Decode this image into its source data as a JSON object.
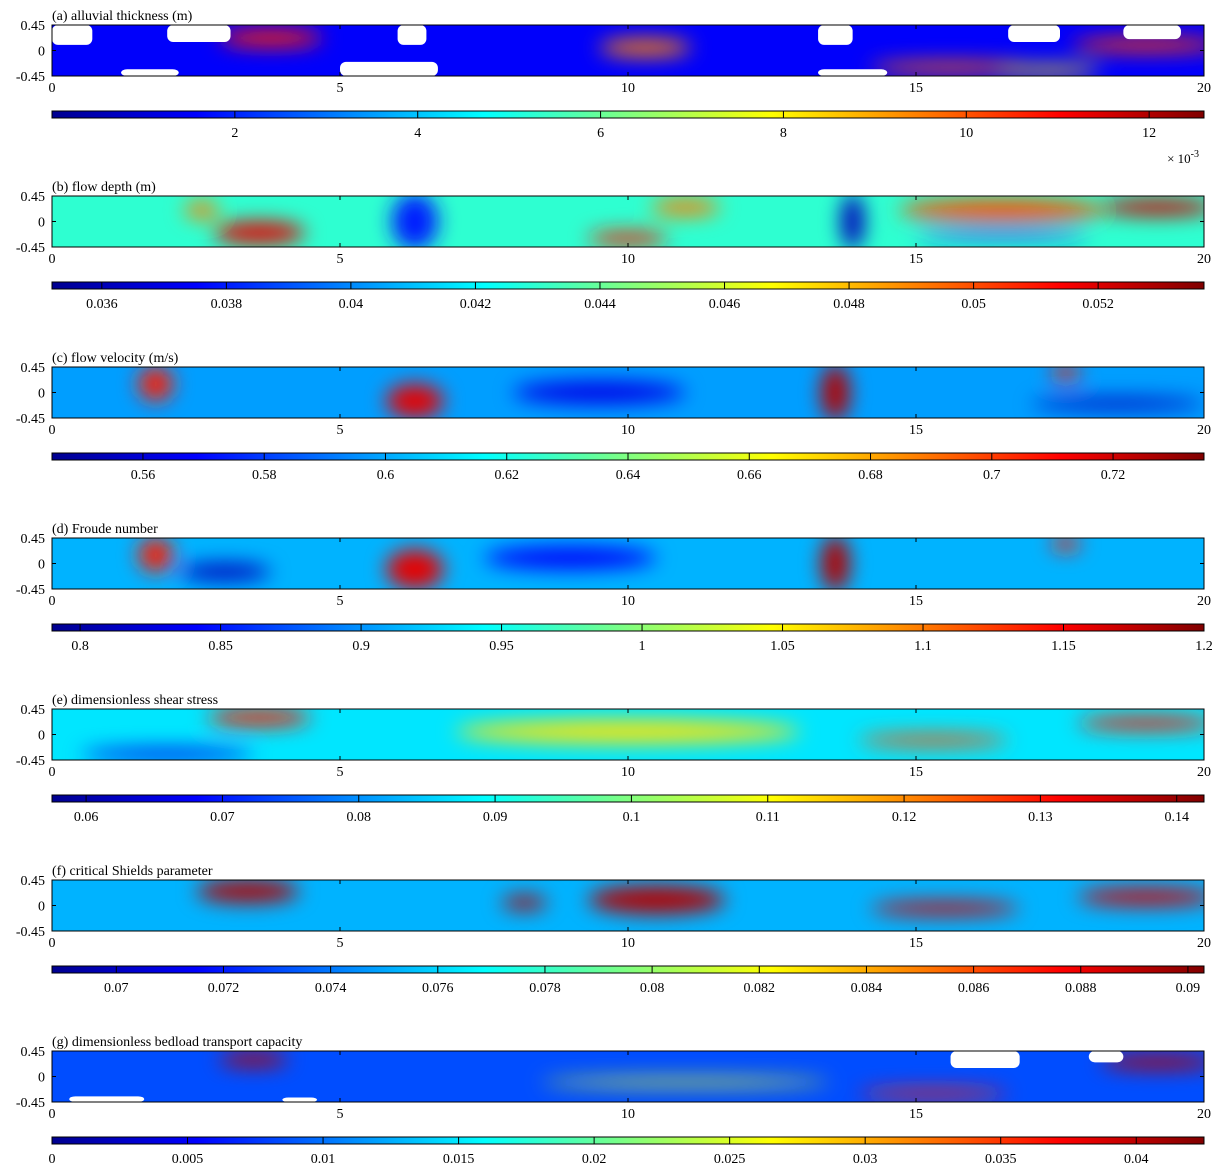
{
  "figure": {
    "axis": {
      "x_ticks": [
        0,
        5,
        10,
        15,
        20
      ],
      "x_tick_labels": [
        "0",
        "5",
        "10",
        "15",
        "20"
      ],
      "y_ticks": [
        0.45,
        0,
        -0.45
      ],
      "y_tick_labels": [
        "0.45",
        "0",
        "-0.45"
      ],
      "xlim": [
        0,
        20
      ],
      "ylim": [
        -0.45,
        0.45
      ]
    },
    "colormap": "jet",
    "colormap_stops": [
      "#00008f",
      "#0000ff",
      "#0080ff",
      "#00ffff",
      "#80ff80",
      "#ffff00",
      "#ff8000",
      "#ff0000",
      "#800000"
    ],
    "nodata_color": "#ffffff"
  },
  "chart_data": [
    {
      "type": "heatmap",
      "title": "(a) alluvial thickness (m)",
      "colorbar": {
        "range": [
          0,
          0.0126
        ],
        "ticks": [
          0.002,
          0.004,
          0.006,
          0.008,
          0.01,
          0.012
        ],
        "tick_labels": [
          "2",
          "4",
          "6",
          "8",
          "10",
          "12"
        ],
        "multiplier": "× 10",
        "exponent": "-3"
      },
      "background_level": 0.12,
      "features": [
        {
          "x": 3.8,
          "y": 0.22,
          "sx": 0.9,
          "sy": 0.15,
          "v": 0.85
        },
        {
          "x": 10.3,
          "y": 0.05,
          "sx": 0.8,
          "sy": 0.15,
          "v": 0.75
        },
        {
          "x": 15.6,
          "y": -0.3,
          "sx": 1.4,
          "sy": 0.1,
          "v": 0.78
        },
        {
          "x": 17.3,
          "y": -0.35,
          "sx": 0.9,
          "sy": 0.08,
          "v": 0.65
        },
        {
          "x": 19.0,
          "y": 0.1,
          "sx": 1.3,
          "sy": 0.12,
          "v": 0.82
        }
      ],
      "nodata": [
        {
          "x": 0,
          "y": 0.1,
          "w": 0.7,
          "h": 0.35
        },
        {
          "x": 2.0,
          "y": 0.15,
          "w": 1.1,
          "h": 0.3
        },
        {
          "x": 1.2,
          "y": -0.45,
          "w": 1.0,
          "h": 0.12
        },
        {
          "x": 5.0,
          "y": -0.45,
          "w": 1.7,
          "h": 0.25
        },
        {
          "x": 6.0,
          "y": 0.1,
          "w": 0.5,
          "h": 0.35
        },
        {
          "x": 13.3,
          "y": -0.45,
          "w": 1.2,
          "h": 0.12
        },
        {
          "x": 13.3,
          "y": 0.1,
          "w": 0.6,
          "h": 0.35
        },
        {
          "x": 16.6,
          "y": 0.15,
          "w": 0.9,
          "h": 0.3
        },
        {
          "x": 18.6,
          "y": 0.2,
          "w": 1.0,
          "h": 0.25
        }
      ]
    },
    {
      "type": "heatmap",
      "title": "(b) flow depth (m)",
      "colorbar": {
        "range": [
          0.0352,
          0.0537
        ],
        "ticks": [
          0.036,
          0.038,
          0.04,
          0.042,
          0.044,
          0.046,
          0.048,
          0.05,
          0.052
        ],
        "tick_labels": [
          "0.036",
          "0.038",
          "0.04",
          "0.042",
          "0.044",
          "0.046",
          "0.048",
          "0.05",
          "0.052"
        ]
      },
      "background_level": 0.42,
      "features": [
        {
          "x": 3.6,
          "y": -0.2,
          "sx": 0.8,
          "sy": 0.2,
          "v": 0.9
        },
        {
          "x": 2.6,
          "y": 0.2,
          "sx": 0.3,
          "sy": 0.15,
          "v": 0.75
        },
        {
          "x": 10.0,
          "y": -0.3,
          "sx": 0.7,
          "sy": 0.12,
          "v": 0.85
        },
        {
          "x": 11.0,
          "y": 0.25,
          "sx": 0.6,
          "sy": 0.15,
          "v": 0.75
        },
        {
          "x": 16.5,
          "y": 0.2,
          "sx": 1.8,
          "sy": 0.2,
          "v": 0.8
        },
        {
          "x": 19.2,
          "y": 0.25,
          "sx": 1.0,
          "sy": 0.15,
          "v": 0.92
        },
        {
          "x": 6.3,
          "y": 0.0,
          "sx": 0.4,
          "sy": 0.5,
          "v": 0.15
        },
        {
          "x": 13.9,
          "y": 0.0,
          "sx": 0.2,
          "sy": 0.5,
          "v": 0.05
        },
        {
          "x": 16.5,
          "y": -0.25,
          "sx": 1.5,
          "sy": 0.07,
          "v": 0.15
        }
      ],
      "nodata": []
    },
    {
      "type": "heatmap",
      "title": "(c) flow velocity (m/s)",
      "colorbar": {
        "range": [
          0.545,
          0.735
        ],
        "ticks": [
          0.56,
          0.58,
          0.6,
          0.62,
          0.64,
          0.66,
          0.68,
          0.7,
          0.72
        ],
        "tick_labels": [
          "0.56",
          "0.58",
          "0.6",
          "0.62",
          "0.64",
          "0.66",
          "0.68",
          "0.7",
          "0.72"
        ]
      },
      "background_level": 0.28,
      "features": [
        {
          "x": 1.8,
          "y": 0.15,
          "sx": 0.3,
          "sy": 0.3,
          "v": 0.85
        },
        {
          "x": 6.3,
          "y": -0.15,
          "sx": 0.5,
          "sy": 0.3,
          "v": 0.9
        },
        {
          "x": 13.6,
          "y": 0.0,
          "sx": 0.25,
          "sy": 0.5,
          "v": 0.95
        },
        {
          "x": 17.6,
          "y": 0.35,
          "sx": 0.25,
          "sy": 0.12,
          "v": 0.85
        },
        {
          "x": 9.5,
          "y": 0.0,
          "sx": 1.5,
          "sy": 0.2,
          "v": 0.1
        },
        {
          "x": 18.5,
          "y": -0.2,
          "sx": 1.5,
          "sy": 0.1,
          "v": 0.05
        }
      ],
      "nodata": []
    },
    {
      "type": "heatmap",
      "title": "(d) Froude number",
      "colorbar": {
        "range": [
          0.79,
          1.2
        ],
        "ticks": [
          0.8,
          0.85,
          0.9,
          0.95,
          1,
          1.05,
          1.1,
          1.15,
          1.2
        ],
        "tick_labels": [
          "0.8",
          "0.85",
          "0.9",
          "0.95",
          "1",
          "1.05",
          "1.1",
          "1.15",
          "1.2"
        ]
      },
      "background_level": 0.3,
      "features": [
        {
          "x": 1.8,
          "y": 0.15,
          "sx": 0.3,
          "sy": 0.3,
          "v": 0.85
        },
        {
          "x": 6.3,
          "y": -0.1,
          "sx": 0.5,
          "sy": 0.35,
          "v": 0.9
        },
        {
          "x": 13.6,
          "y": 0.0,
          "sx": 0.25,
          "sy": 0.5,
          "v": 0.95
        },
        {
          "x": 17.6,
          "y": 0.35,
          "sx": 0.25,
          "sy": 0.12,
          "v": 0.85
        },
        {
          "x": 3.0,
          "y": -0.15,
          "sx": 0.8,
          "sy": 0.15,
          "v": 0.05
        },
        {
          "x": 9.0,
          "y": 0.1,
          "sx": 1.5,
          "sy": 0.2,
          "v": 0.12
        }
      ],
      "nodata": []
    },
    {
      "type": "heatmap",
      "title": "(e) dimensionless shear stress",
      "colorbar": {
        "range": [
          0.0575,
          0.142
        ],
        "ticks": [
          0.06,
          0.07,
          0.08,
          0.09,
          0.1,
          0.11,
          0.12,
          0.13,
          0.14
        ],
        "tick_labels": [
          "0.06",
          "0.07",
          "0.08",
          "0.09",
          "0.1",
          "0.11",
          "0.12",
          "0.13",
          "0.14"
        ]
      },
      "background_level": 0.35,
      "features": [
        {
          "x": 3.6,
          "y": 0.3,
          "sx": 0.9,
          "sy": 0.15,
          "v": 0.85
        },
        {
          "x": 10.0,
          "y": 0.05,
          "sx": 3.0,
          "sy": 0.2,
          "v": 0.65
        },
        {
          "x": 15.3,
          "y": -0.1,
          "sx": 1.3,
          "sy": 0.1,
          "v": 0.8
        },
        {
          "x": 19.0,
          "y": 0.2,
          "sx": 1.2,
          "sy": 0.12,
          "v": 0.85
        },
        {
          "x": 2.0,
          "y": -0.35,
          "sx": 1.5,
          "sy": 0.1,
          "v": 0.1
        }
      ],
      "nodata": []
    },
    {
      "type": "heatmap",
      "title": "(f) critical Shields parameter",
      "colorbar": {
        "range": [
          0.0688,
          0.0903
        ],
        "ticks": [
          0.07,
          0.072,
          0.074,
          0.076,
          0.078,
          0.08,
          0.082,
          0.084,
          0.086,
          0.088,
          0.09
        ],
        "tick_labels": [
          "0.07",
          "0.072",
          "0.074",
          "0.076",
          "0.078",
          "0.08",
          "0.082",
          "0.084",
          "0.086",
          "0.088",
          "0.09"
        ]
      },
      "background_level": 0.3,
      "features": [
        {
          "x": 3.4,
          "y": 0.25,
          "sx": 0.9,
          "sy": 0.2,
          "v": 0.95
        },
        {
          "x": 8.2,
          "y": 0.05,
          "sx": 0.4,
          "sy": 0.12,
          "v": 0.95
        },
        {
          "x": 10.5,
          "y": 0.1,
          "sx": 1.2,
          "sy": 0.25,
          "v": 0.95
        },
        {
          "x": 15.5,
          "y": -0.05,
          "sx": 1.3,
          "sy": 0.12,
          "v": 0.92
        },
        {
          "x": 19.0,
          "y": 0.15,
          "sx": 1.2,
          "sy": 0.15,
          "v": 0.92
        }
      ],
      "nodata": []
    },
    {
      "type": "heatmap",
      "title": "(g) dimensionless bedload transport capacity",
      "colorbar": {
        "range": [
          0,
          0.0425
        ],
        "ticks": [
          0,
          0.005,
          0.01,
          0.015,
          0.02,
          0.025,
          0.03,
          0.035,
          0.04
        ],
        "tick_labels": [
          "0",
          "0.005",
          "0.01",
          "0.015",
          "0.02",
          "0.025",
          "0.03",
          "0.035",
          "0.04"
        ]
      },
      "background_level": 0.2,
      "features": [
        {
          "x": 3.5,
          "y": 0.3,
          "sx": 0.6,
          "sy": 0.12,
          "v": 0.95
        },
        {
          "x": 11.0,
          "y": -0.1,
          "sx": 2.5,
          "sy": 0.07,
          "v": 0.6
        },
        {
          "x": 15.3,
          "y": -0.3,
          "sx": 1.3,
          "sy": 0.08,
          "v": 0.85
        },
        {
          "x": 19.2,
          "y": 0.25,
          "sx": 1.0,
          "sy": 0.12,
          "v": 0.95
        }
      ],
      "nodata": [
        {
          "x": 0.3,
          "y": -0.45,
          "w": 1.3,
          "h": 0.1
        },
        {
          "x": 4.0,
          "y": -0.45,
          "w": 0.6,
          "h": 0.08
        },
        {
          "x": 15.6,
          "y": 0.15,
          "w": 1.2,
          "h": 0.3
        },
        {
          "x": 18.0,
          "y": 0.25,
          "w": 0.6,
          "h": 0.2
        }
      ]
    }
  ]
}
